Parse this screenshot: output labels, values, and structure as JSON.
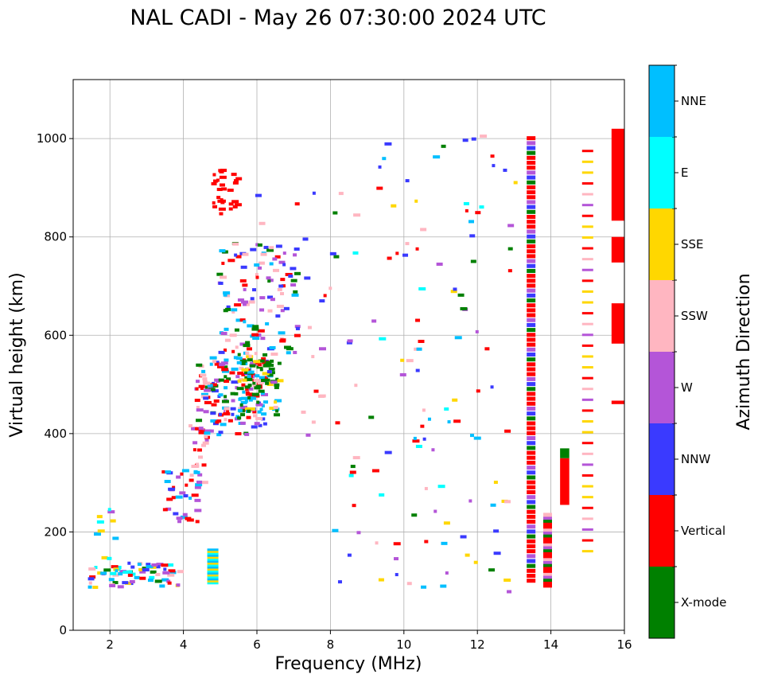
{
  "chart_data": {
    "type": "scatter",
    "title": "NAL CADI - May 26 07:30:00 2024 UTC",
    "xlabel": "Frequency (MHz)",
    "ylabel": "Virtual height (km)",
    "xlim": [
      1,
      16
    ],
    "ylim": [
      0,
      1120
    ],
    "xticks": [
      "2",
      "4",
      "6",
      "8",
      "10",
      "12",
      "14",
      "16"
    ],
    "yticks": [
      "0",
      "200",
      "400",
      "600",
      "800",
      "1000"
    ],
    "grid": true,
    "colorbar": {
      "label": "Azimuth Direction",
      "categories": [
        {
          "name": "X-mode",
          "color": "#008000"
        },
        {
          "name": "Vertical",
          "color": "#ff0000"
        },
        {
          "name": "NNW",
          "color": "#3a3aff"
        },
        {
          "name": "W",
          "color": "#b455d8"
        },
        {
          "name": "SSW",
          "color": "#ffb6c1"
        },
        {
          "name": "SSE",
          "color": "#ffd700"
        },
        {
          "name": "E",
          "color": "#00ffff"
        },
        {
          "name": "NNE",
          "color": "#00bfff"
        }
      ]
    },
    "clusters": [
      {
        "desc": "E-layer echoes",
        "f": [
          1.4,
          3.9
        ],
        "h": [
          90,
          140
        ],
        "colors": [
          "Vertical",
          "E",
          "NNE",
          "SSW",
          "W",
          "SSE",
          "X-mode",
          "NNW"
        ],
        "n": 70
      },
      {
        "desc": "E-layer spread",
        "f": [
          1.5,
          2.2
        ],
        "h": [
          140,
          250
        ],
        "colors": [
          "NNE",
          "W",
          "E",
          "SSE",
          "NNW"
        ],
        "n": 10
      },
      {
        "desc": "F-layer lower trace",
        "f": [
          3.4,
          4.4
        ],
        "h": [
          220,
          330
        ],
        "colors": [
          "Vertical",
          "NNE",
          "NNW",
          "W"
        ],
        "n": 35
      },
      {
        "desc": "F-layer rise",
        "f": [
          4.1,
          4.6
        ],
        "h": [
          300,
          420
        ],
        "colors": [
          "Vertical",
          "W",
          "SSW"
        ],
        "n": 25
      },
      {
        "desc": "F-layer main",
        "f": [
          4.3,
          6.2
        ],
        "h": [
          400,
          560
        ],
        "colors": [
          "Vertical",
          "Vertical",
          "W",
          "NNE",
          "NNW",
          "SSW",
          "X-mode"
        ],
        "n": 180
      },
      {
        "desc": "X-mode trace",
        "f": [
          5.4,
          6.6
        ],
        "h": [
          440,
          560
        ],
        "colors": [
          "X-mode",
          "X-mode",
          "NNE",
          "SSE"
        ],
        "n": 70
      },
      {
        "desc": "Upper F echoes",
        "f": [
          4.9,
          7.1
        ],
        "h": [
          560,
          790
        ],
        "colors": [
          "Vertical",
          "X-mode",
          "W",
          "SSW",
          "NNW",
          "NNE"
        ],
        "n": 130
      },
      {
        "desc": "Multi-hop upper",
        "f": [
          4.7,
          5.5
        ],
        "h": [
          850,
          940
        ],
        "colors": [
          "Vertical"
        ],
        "n": 30
      },
      {
        "desc": "Scattered high freq",
        "f": [
          8,
          13
        ],
        "h": [
          80,
          1020
        ],
        "colors": [
          "Vertical",
          "W",
          "SSW",
          "E",
          "NNE",
          "SSE",
          "NNW",
          "X-mode"
        ],
        "n": 120
      },
      {
        "desc": "Scattered mid",
        "f": [
          5.9,
          8
        ],
        "h": [
          400,
          900
        ],
        "colors": [
          "Vertical",
          "W",
          "SSW",
          "NNW"
        ],
        "n": 25
      }
    ],
    "columns": [
      {
        "f": 13.45,
        "h_start": 100,
        "h_end": 1005,
        "step": 10,
        "colors": [
          "Vertical",
          "Vertical",
          "Vertical",
          "X-mode",
          "NNW",
          "W"
        ]
      },
      {
        "f": 13.9,
        "h_start": 90,
        "h_end": 235,
        "step": 6,
        "colors": [
          "Vertical",
          "Vertical",
          "X-mode",
          "W",
          "SSW"
        ]
      }
    ],
    "blocks": [
      {
        "f0": 14.25,
        "f1": 14.5,
        "h0": 255,
        "h1": 350,
        "color": "Vertical"
      },
      {
        "f0": 14.25,
        "f1": 14.5,
        "h0": 350,
        "h1": 370,
        "color": "X-mode"
      },
      {
        "f0": 15.65,
        "f1": 16.0,
        "h0": 833,
        "h1": 1020,
        "color": "Vertical"
      },
      {
        "f0": 15.65,
        "f1": 16.0,
        "h0": 748,
        "h1": 800,
        "color": "Vertical"
      },
      {
        "f0": 15.65,
        "f1": 16.0,
        "h0": 583,
        "h1": 665,
        "color": "Vertical"
      },
      {
        "f0": 15.65,
        "f1": 16.0,
        "h0": 460,
        "h1": 467,
        "color": "Vertical"
      }
    ],
    "strips": [
      {
        "f": 4.8,
        "h_start": 95,
        "h_end": 165,
        "step": 4,
        "colors": [
          "E",
          "SSE",
          "NNE"
        ]
      },
      {
        "f": 15.0,
        "h_start": 160,
        "h_end": 975,
        "step": 22,
        "colors": [
          "SSE",
          "Vertical",
          "W",
          "SSW",
          "Vertical",
          "SSE"
        ]
      }
    ]
  }
}
